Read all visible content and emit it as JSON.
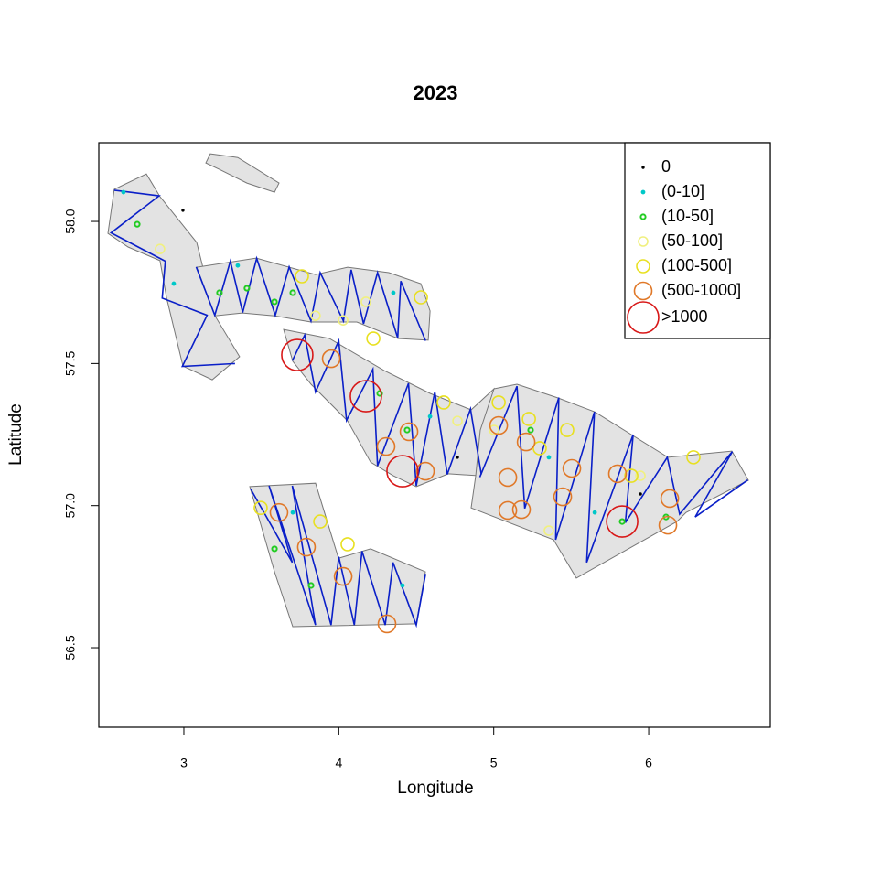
{
  "chart_data": {
    "type": "scatter",
    "title": "2023",
    "xlabel": "Longitude",
    "ylabel": "Latitude",
    "xlim": [
      2.451,
      6.785
    ],
    "ylim": [
      56.22,
      58.277
    ],
    "xticks": [
      3,
      4,
      5,
      6
    ],
    "yticks": [
      {
        "value": 56.5,
        "label": "56.5"
      },
      {
        "value": 57,
        "label": "57.0"
      },
      {
        "value": 57.5,
        "label": "57.5"
      },
      {
        "value": 58,
        "label": "58.0"
      }
    ],
    "legend": "topright",
    "polygon_color": "#e3e3e3",
    "track_color": "#0a1fc8",
    "polygons": [
      {
        "x": [
          2.551,
          2.758,
          2.846,
          3.083,
          3.201,
          3.36,
          3.183,
          2.994,
          2.888,
          2.846,
          2.64,
          2.51
        ],
        "y": [
          58.113,
          58.167,
          58.087,
          57.926,
          57.668,
          57.524,
          57.443,
          57.491,
          57.733,
          57.862,
          57.91,
          57.958
        ]
      },
      {
        "x": [
          3.083,
          3.467,
          3.85,
          4.057,
          4.323,
          4.53,
          4.589,
          4.577,
          4.382,
          4.116,
          3.821,
          3.585,
          3.378,
          3.201
        ],
        "y": [
          57.839,
          57.871,
          57.813,
          57.839,
          57.82,
          57.781,
          57.685,
          57.582,
          57.588,
          57.646,
          57.646,
          57.668,
          57.678,
          57.668
        ]
      },
      {
        "x": [
          3.644,
          3.939,
          4.293,
          4.589,
          4.854,
          5.002,
          4.913,
          4.707,
          4.5,
          4.352,
          4.205,
          4.057,
          3.821,
          3.703
        ],
        "y": [
          57.62,
          57.588,
          57.475,
          57.395,
          57.337,
          57.411,
          57.105,
          57.112,
          57.067,
          57.105,
          57.153,
          57.298,
          57.427,
          57.508
        ]
      },
      {
        "x": [
          5.002,
          5.15,
          5.415,
          5.652,
          6.124,
          6.537,
          6.644,
          6.242,
          6.183,
          5.533,
          5.386,
          4.854,
          4.884,
          4.913
        ],
        "y": [
          57.411,
          57.427,
          57.379,
          57.33,
          57.17,
          57.192,
          57.089,
          56.976,
          56.944,
          56.745,
          56.88,
          56.992,
          57.105,
          57.266
        ]
      },
      {
        "x": [
          3.425,
          3.85,
          3.998,
          4.205,
          4.559,
          4.5,
          3.703,
          3.585
        ],
        "y": [
          57.067,
          57.079,
          56.815,
          56.848,
          56.767,
          56.584,
          56.574,
          56.767
        ]
      },
      {
        "x": [
          3.171,
          3.348,
          3.614,
          3.585,
          3.407,
          3.23,
          3.142
        ],
        "y": [
          58.238,
          58.225,
          58.135,
          58.103,
          58.135,
          58.183,
          58.206
        ]
      }
    ],
    "tracks": [
      {
        "x": [
          2.55,
          2.84,
          2.53,
          2.88,
          2.86,
          3.15,
          2.99,
          3.33
        ],
        "y": [
          58.11,
          58.09,
          57.96,
          57.86,
          57.73,
          57.67,
          57.49,
          57.5
        ]
      },
      {
        "x": [
          3.08,
          3.2,
          3.3,
          3.38,
          3.47,
          3.59,
          3.68,
          3.82,
          3.88,
          4.03,
          4.08,
          4.16,
          4.25,
          4.38,
          4.4,
          4.56
        ],
        "y": [
          57.84,
          57.67,
          57.86,
          57.68,
          57.87,
          57.67,
          57.84,
          57.65,
          57.82,
          57.65,
          57.83,
          57.64,
          57.82,
          57.59,
          57.79,
          57.58
        ]
      },
      {
        "x": [
          3.7,
          3.78,
          3.85,
          4.0,
          4.05,
          4.22,
          4.25,
          4.45,
          4.5,
          4.62,
          4.7,
          4.85,
          4.92
        ],
        "y": [
          57.51,
          57.6,
          57.4,
          57.58,
          57.3,
          57.48,
          57.14,
          57.43,
          57.07,
          57.4,
          57.11,
          57.34,
          57.11
        ]
      },
      {
        "x": [
          4.91,
          5.15,
          5.2,
          5.42,
          5.4,
          5.65,
          5.6,
          5.9,
          5.85,
          6.12,
          6.2,
          6.54,
          6.3,
          6.64
        ],
        "y": [
          57.1,
          57.42,
          56.99,
          57.38,
          56.88,
          57.33,
          56.8,
          57.25,
          56.94,
          57.17,
          56.97,
          57.19,
          56.96,
          57.09
        ]
      },
      {
        "x": [
          3.43,
          3.7,
          3.55,
          3.85,
          3.7,
          3.95,
          4.0,
          4.1,
          4.15,
          4.3,
          4.35,
          4.5,
          4.56
        ],
        "y": [
          57.06,
          56.8,
          57.07,
          56.58,
          57.07,
          56.58,
          56.82,
          56.58,
          56.84,
          56.58,
          56.8,
          56.58,
          56.76
        ]
      }
    ],
    "series": [
      {
        "name": "0",
        "color": "#000000",
        "x": [
          2.994,
          4.766,
          5.947
        ],
        "y": [
          58.039,
          57.17,
          57.041
        ]
      },
      {
        "name": "(0-10]",
        "color": "#00c8c8",
        "x": [
          2.61,
          2.935,
          3.348,
          4.352,
          4.589,
          5.356,
          5.652,
          4.411,
          3.703
        ],
        "y": [
          58.103,
          57.781,
          57.845,
          57.749,
          57.314,
          57.17,
          56.976,
          56.719,
          56.976
        ]
      },
      {
        "name": "(10-50]",
        "color": "#22cc22",
        "x": [
          2.699,
          3.23,
          3.407,
          3.585,
          3.703,
          4.264,
          4.441,
          3.585,
          3.821,
          5.829,
          6.112,
          5.238
        ],
        "y": [
          57.99,
          57.749,
          57.765,
          57.717,
          57.749,
          57.395,
          57.266,
          56.848,
          56.719,
          56.944,
          56.96,
          57.266
        ]
      },
      {
        "name": "(50-100]",
        "color": "#f0f080",
        "x": [
          2.846,
          3.85,
          4.028,
          4.175,
          4.766,
          5.002,
          5.356,
          5.947
        ],
        "y": [
          57.903,
          57.668,
          57.652,
          57.717,
          57.298,
          57.266,
          56.912,
          57.105
        ]
      },
      {
        "name": "(100-500]",
        "color": "#e8e020",
        "x": [
          4.53,
          3.762,
          4.223,
          5.032,
          5.227,
          5.297,
          5.474,
          3.496,
          4.057,
          3.88,
          4.677,
          6.289,
          5.888
        ],
        "y": [
          57.733,
          57.807,
          57.588,
          57.363,
          57.305,
          57.202,
          57.266,
          56.992,
          56.864,
          56.944,
          57.363,
          57.17,
          57.105
        ]
      },
      {
        "name": "(500-1000]",
        "color": "#e07828",
        "x": [
          3.951,
          5.032,
          5.091,
          5.179,
          5.445,
          5.504,
          5.209,
          5.799,
          6.136,
          6.124,
          3.614,
          3.791,
          4.028,
          4.311,
          4.305,
          4.453,
          4.559,
          5.091
        ],
        "y": [
          57.517,
          57.282,
          56.983,
          56.986,
          57.031,
          57.131,
          57.224,
          57.112,
          57.025,
          56.931,
          56.976,
          56.854,
          56.751,
          56.584,
          57.208,
          57.26,
          57.121,
          57.099
        ]
      },
      {
        "name": ">1000",
        "color": "#d81818",
        "x": [
          3.732,
          4.175,
          4.411,
          5.829
        ],
        "y": [
          57.53,
          57.385,
          57.121,
          56.944
        ]
      }
    ]
  }
}
